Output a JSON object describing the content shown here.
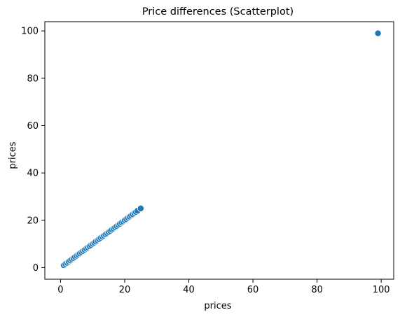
{
  "chart_data": {
    "type": "scatter",
    "title": "Price differences (Scatterplot)",
    "xlabel": "prices",
    "ylabel": "prices",
    "xlim": [
      -4.9,
      103.9
    ],
    "ylim": [
      -4.9,
      103.9
    ],
    "xticks": [
      0,
      20,
      40,
      60,
      80,
      100
    ],
    "yticks": [
      0,
      20,
      40,
      60,
      80,
      100
    ],
    "tick_labels_x": [
      "0",
      "20",
      "40",
      "60",
      "80",
      "100"
    ],
    "tick_labels_y": [
      "0",
      "20",
      "40",
      "60",
      "80",
      "100"
    ],
    "grid": false,
    "legend": "none",
    "marker_color": "#1f77b4",
    "marker_edge_color": "#ffffff",
    "series": [
      {
        "x": [
          1,
          1.5,
          2,
          2.5,
          3,
          3.5,
          4,
          4.5,
          5,
          5.5,
          6,
          6.5,
          7,
          7.5,
          8,
          8.5,
          9,
          9.5,
          10,
          10.5,
          11,
          11.5,
          12,
          12.5,
          13,
          13.5,
          14,
          14.5,
          15,
          15.5,
          16,
          16.5,
          17,
          17.5,
          18,
          18.5,
          19,
          19.5,
          20,
          20.5,
          21,
          21.5,
          22,
          22.5,
          23,
          23.5,
          24,
          25,
          99
        ],
        "y": [
          1,
          1.5,
          2,
          2.5,
          3,
          3.5,
          4,
          4.5,
          5,
          5.5,
          6,
          6.5,
          7,
          7.5,
          8,
          8.5,
          9,
          9.5,
          10,
          10.5,
          11,
          11.5,
          12,
          12.5,
          13,
          13.5,
          14,
          14.5,
          15,
          15.5,
          16,
          16.5,
          17,
          17.5,
          18,
          18.5,
          19,
          19.5,
          20,
          20.5,
          21,
          21.5,
          22,
          22.5,
          23,
          23.5,
          24,
          25,
          99
        ]
      }
    ]
  }
}
